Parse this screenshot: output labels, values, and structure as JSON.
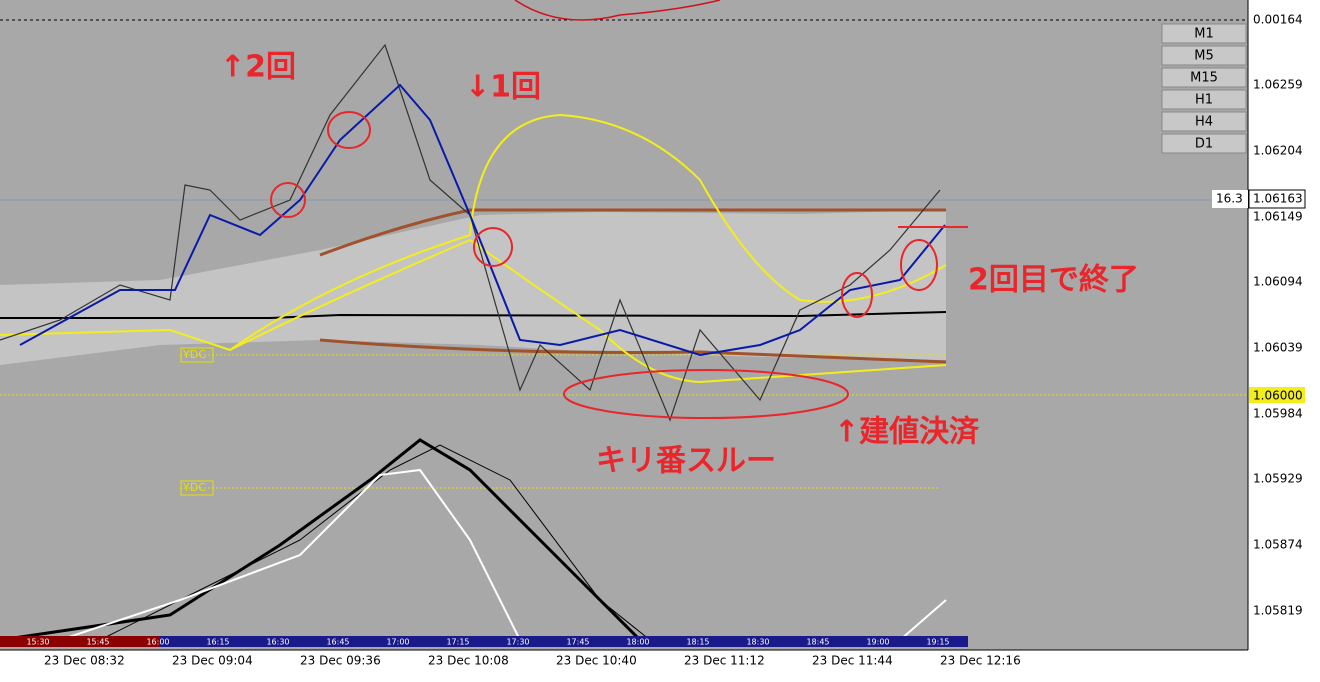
{
  "timeframes": [
    "M1",
    "M5",
    "M15",
    "H1",
    "H4",
    "D1"
  ],
  "price_axis": [
    "0.00164",
    "1.06259",
    "1.06204",
    "1.06149",
    "1.06094",
    "1.06039",
    "1.05984",
    "1.05929",
    "1.05874",
    "1.05819"
  ],
  "current_price": {
    "label": "16.3",
    "price": "1.06163"
  },
  "level_price": "1.06000",
  "ydc_labels": [
    "YDC",
    "YDC"
  ],
  "time_axis": [
    "23 Dec 08:32",
    "23 Dec 09:04",
    "23 Dec 09:36",
    "23 Dec 10:08",
    "23 Dec 10:40",
    "23 Dec 11:12",
    "23 Dec 11:44",
    "23 Dec 12:16"
  ],
  "session_bar": [
    "15:30",
    "15:45",
    "16:00",
    "16:15",
    "16:30",
    "16:45",
    "17:00",
    "17:15",
    "17:30",
    "17:45",
    "18:00",
    "18:15",
    "18:30",
    "18:45",
    "19:00",
    "19:15"
  ],
  "annotations": [
    "↑2回",
    "↓1回",
    "2回目で終了",
    "キリ番スルー",
    "↑建値決済"
  ]
}
